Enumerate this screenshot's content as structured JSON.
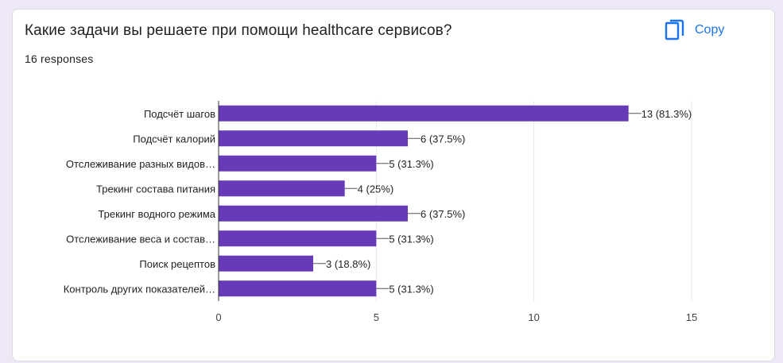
{
  "question": {
    "title": "Какие задачи вы решаете при помощи healthcare сервисов?",
    "responses": "16 responses"
  },
  "copy_button": {
    "label": "Copy",
    "icon": "copy-icon"
  },
  "colors": {
    "bar": "#673ab7",
    "accent": "#1a73e8",
    "grid": "#e6e6e6",
    "axis": "#333333"
  },
  "chart_data": {
    "type": "bar",
    "orientation": "horizontal",
    "categories": [
      "Подсчёт шагов",
      "Подсчёт калорий",
      "Отслеживание разных видов…",
      "Трекинг состава питания",
      "Трекинг водного режима",
      "Отслеживание веса и состав…",
      "Поиск рецептов",
      "Контроль других показателей…"
    ],
    "values": [
      13,
      6,
      5,
      4,
      6,
      5,
      3,
      5
    ],
    "value_labels": [
      "13 (81.3%)",
      "6 (37.5%)",
      "5 (31.3%)",
      "4 (25%)",
      "6 (37.5%)",
      "5 (31.3%)",
      "3 (18.8%)",
      "5 (31.3%)"
    ],
    "xlim": [
      0,
      15
    ],
    "xticks": [
      0,
      5,
      10,
      15
    ],
    "grid": true
  }
}
